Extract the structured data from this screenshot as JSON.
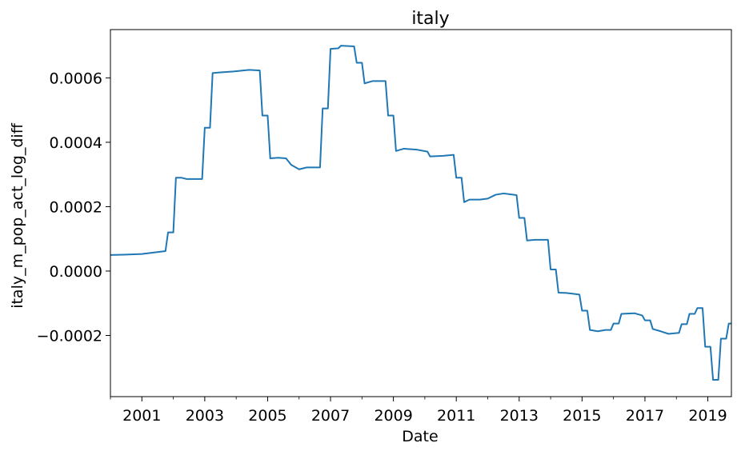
{
  "chart_data": {
    "type": "line",
    "title": "italy",
    "xlabel": "Date",
    "ylabel": "italy_m_pop_act_log_diff",
    "x_ticks": [
      "2001",
      "2003",
      "2005",
      "2007",
      "2009",
      "2011",
      "2013",
      "2015",
      "2017",
      "2019"
    ],
    "y_ticks": [
      {
        "value": -0.0002,
        "label": "−0.0002"
      },
      {
        "value": 0.0,
        "label": "0.0000"
      },
      {
        "value": 0.0002,
        "label": "0.0002"
      },
      {
        "value": 0.0004,
        "label": "0.0004"
      },
      {
        "value": 0.0006,
        "label": "0.0006"
      }
    ],
    "xlim": [
      "2000-01",
      "2019-10"
    ],
    "ylim": [
      -0.00039,
      0.00075
    ],
    "grid": false,
    "series": [
      {
        "color": "#1f77b4",
        "points": [
          [
            "2000-01",
            5e-05
          ],
          [
            "2000-06",
            5.1e-05
          ],
          [
            "2001-01",
            5.3e-05
          ],
          [
            "2001-06",
            5.8e-05
          ],
          [
            "2001-10",
            6.2e-05
          ],
          [
            "2001-11",
            0.00012
          ],
          [
            "2002-01",
            0.00012
          ],
          [
            "2002-02",
            0.00029
          ],
          [
            "2002-04",
            0.00029
          ],
          [
            "2002-06",
            0.000286
          ],
          [
            "2002-12",
            0.000286
          ],
          [
            "2003-01",
            0.000445
          ],
          [
            "2003-03",
            0.000445
          ],
          [
            "2003-04",
            0.000615
          ],
          [
            "2003-07",
            0.000617
          ],
          [
            "2003-12",
            0.00062
          ],
          [
            "2004-06",
            0.000625
          ],
          [
            "2004-10",
            0.000623
          ],
          [
            "2004-11",
            0.000483
          ],
          [
            "2005-01",
            0.000483
          ],
          [
            "2005-02",
            0.00035
          ],
          [
            "2005-05",
            0.000352
          ],
          [
            "2005-08",
            0.00035
          ],
          [
            "2005-10",
            0.00033
          ],
          [
            "2006-01",
            0.000316
          ],
          [
            "2006-04",
            0.000322
          ],
          [
            "2006-09",
            0.000322
          ],
          [
            "2006-10",
            0.000505
          ],
          [
            "2006-12",
            0.000505
          ],
          [
            "2007-01",
            0.00069
          ],
          [
            "2007-04",
            0.000692
          ],
          [
            "2007-05",
            0.0007
          ],
          [
            "2007-10",
            0.000698
          ],
          [
            "2007-11",
            0.000647
          ],
          [
            "2008-01",
            0.000647
          ],
          [
            "2008-02",
            0.000583
          ],
          [
            "2008-05",
            0.00059
          ],
          [
            "2008-10",
            0.00059
          ],
          [
            "2008-11",
            0.000483
          ],
          [
            "2009-01",
            0.000483
          ],
          [
            "2009-02",
            0.000373
          ],
          [
            "2009-05",
            0.00038
          ],
          [
            "2009-10",
            0.000377
          ],
          [
            "2010-02",
            0.000371
          ],
          [
            "2010-03",
            0.000356
          ],
          [
            "2010-08",
            0.000358
          ],
          [
            "2010-12",
            0.000361
          ],
          [
            "2011-01",
            0.00029
          ],
          [
            "2011-03",
            0.00029
          ],
          [
            "2011-04",
            0.000214
          ],
          [
            "2011-06",
            0.000222
          ],
          [
            "2011-10",
            0.000222
          ],
          [
            "2012-01",
            0.000225
          ],
          [
            "2012-04",
            0.000237
          ],
          [
            "2012-07",
            0.000241
          ],
          [
            "2012-12",
            0.000236
          ],
          [
            "2013-01",
            0.000165
          ],
          [
            "2013-03",
            0.000165
          ],
          [
            "2013-04",
            9.5e-05
          ],
          [
            "2013-07",
            9.7e-05
          ],
          [
            "2013-12",
            9.7e-05
          ],
          [
            "2014-01",
            5e-06
          ],
          [
            "2014-03",
            5e-06
          ],
          [
            "2014-04",
            -6.7e-05
          ],
          [
            "2014-07",
            -6.8e-05
          ],
          [
            "2014-09",
            -7e-05
          ],
          [
            "2014-12",
            -7.3e-05
          ],
          [
            "2015-01",
            -0.000123
          ],
          [
            "2015-03",
            -0.000123
          ],
          [
            "2015-04",
            -0.000183
          ],
          [
            "2015-07",
            -0.000187
          ],
          [
            "2015-10",
            -0.000183
          ],
          [
            "2015-12",
            -0.000183
          ],
          [
            "2016-01",
            -0.000163
          ],
          [
            "2016-03",
            -0.000163
          ],
          [
            "2016-04",
            -0.000133
          ],
          [
            "2016-09",
            -0.000131
          ],
          [
            "2016-12",
            -0.000138
          ],
          [
            "2017-01",
            -0.000153
          ],
          [
            "2017-03",
            -0.000153
          ],
          [
            "2017-04",
            -0.00018
          ],
          [
            "2017-07",
            -0.000187
          ],
          [
            "2017-10",
            -0.000195
          ],
          [
            "2018-02",
            -0.000192
          ],
          [
            "2018-03",
            -0.000165
          ],
          [
            "2018-05",
            -0.000165
          ],
          [
            "2018-06",
            -0.000133
          ],
          [
            "2018-08",
            -0.000133
          ],
          [
            "2018-09",
            -0.000115
          ],
          [
            "2018-11",
            -0.000115
          ],
          [
            "2018-12",
            -0.000235
          ],
          [
            "2019-02",
            -0.000235
          ],
          [
            "2019-03",
            -0.000338
          ],
          [
            "2019-05",
            -0.000338
          ],
          [
            "2019-06",
            -0.00021
          ],
          [
            "2019-08",
            -0.00021
          ],
          [
            "2019-09",
            -0.000163
          ],
          [
            "2019-10",
            -0.000163
          ]
        ]
      }
    ]
  }
}
